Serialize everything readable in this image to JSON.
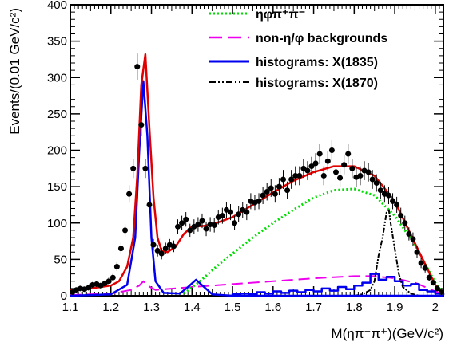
{
  "chart_data": {
    "type": "scatter",
    "xlabel": "M(ηπ⁻π⁺)(GeV/c²)",
    "ylabel": "Events/(0.01 GeV/c²)",
    "xlim": [
      1.1,
      2.02
    ],
    "ylim": [
      0,
      400
    ],
    "xticks": [
      "1.1",
      "1.2",
      "1.3",
      "1.4",
      "1.5",
      "1.6",
      "1.7",
      "1.8",
      "1.9",
      "2"
    ],
    "yticks": [
      "0",
      "50",
      "100",
      "150",
      "200",
      "250",
      "300",
      "350",
      "400"
    ],
    "legend_position": "top-right",
    "colors": {
      "data": "#000000",
      "total_fit": "#e00000",
      "eta_phi_pipi": "#00dd00",
      "non_eta_phi": "#ee00ee",
      "x1835": "#0000ee",
      "x1870": "#000000"
    },
    "legend": [
      {
        "label": "ηφπ⁺π⁻",
        "series": "eta_phi_pipi",
        "style": "dotted"
      },
      {
        "label": "non-η/φ backgrounds",
        "series": "non_eta_phi",
        "style": "dashed"
      },
      {
        "label": "histograms: X(1835)",
        "series": "x1835",
        "style": "solid"
      },
      {
        "label": "histograms: X(1870)",
        "series": "x1870",
        "style": "dashdotdot"
      }
    ],
    "data_points": {
      "x": [
        1.105,
        1.115,
        1.125,
        1.135,
        1.145,
        1.155,
        1.165,
        1.175,
        1.185,
        1.195,
        1.205,
        1.215,
        1.225,
        1.235,
        1.245,
        1.255,
        1.265,
        1.275,
        1.285,
        1.295,
        1.305,
        1.315,
        1.325,
        1.335,
        1.345,
        1.355,
        1.365,
        1.375,
        1.385,
        1.395,
        1.405,
        1.415,
        1.425,
        1.435,
        1.445,
        1.455,
        1.465,
        1.475,
        1.485,
        1.495,
        1.505,
        1.515,
        1.525,
        1.535,
        1.545,
        1.555,
        1.565,
        1.575,
        1.585,
        1.595,
        1.605,
        1.615,
        1.625,
        1.635,
        1.645,
        1.655,
        1.665,
        1.675,
        1.685,
        1.695,
        1.705,
        1.715,
        1.725,
        1.735,
        1.745,
        1.755,
        1.765,
        1.775,
        1.785,
        1.795,
        1.805,
        1.815,
        1.825,
        1.835,
        1.845,
        1.855,
        1.865,
        1.875,
        1.885,
        1.895,
        1.905,
        1.915,
        1.925,
        1.935,
        1.945,
        1.955,
        1.965,
        1.975,
        1.985,
        1.995,
        2.005,
        2.015
      ],
      "y": [
        5,
        8,
        10,
        9,
        11,
        15,
        16,
        14,
        17,
        20,
        25,
        40,
        65,
        90,
        140,
        175,
        315,
        235,
        175,
        125,
        70,
        62,
        58,
        65,
        70,
        68,
        95,
        100,
        105,
        90,
        95,
        98,
        103,
        92,
        98,
        97,
        108,
        110,
        118,
        115,
        100,
        112,
        118,
        115,
        130,
        128,
        130,
        138,
        143,
        148,
        140,
        150,
        160,
        145,
        160,
        165,
        165,
        175,
        172,
        178,
        182,
        195,
        165,
        185,
        200,
        170,
        162,
        180,
        195,
        175,
        163,
        165,
        172,
        170,
        160,
        155,
        145,
        140,
        138,
        130,
        125,
        110,
        100,
        85,
        78,
        60,
        45,
        38,
        25,
        18,
        10,
        5
      ],
      "error": [
        3,
        3,
        3,
        3,
        3,
        4,
        4,
        4,
        4,
        5,
        5,
        6,
        8,
        9,
        12,
        13,
        18,
        15,
        13,
        11,
        8,
        8,
        8,
        8,
        8,
        8,
        10,
        10,
        10,
        9,
        10,
        10,
        10,
        10,
        10,
        10,
        10,
        11,
        11,
        11,
        10,
        11,
        11,
        11,
        11,
        11,
        11,
        12,
        12,
        12,
        12,
        12,
        13,
        12,
        13,
        13,
        13,
        13,
        13,
        13,
        14,
        14,
        13,
        14,
        14,
        13,
        13,
        13,
        14,
        13,
        13,
        13,
        13,
        13,
        13,
        12,
        12,
        12,
        12,
        11,
        11,
        11,
        10,
        9,
        9,
        8,
        7,
        6,
        5,
        4,
        3,
        2
      ]
    },
    "series": [
      {
        "id": "total_fit",
        "x": [
          1.1,
          1.15,
          1.2,
          1.22,
          1.24,
          1.255,
          1.265,
          1.275,
          1.285,
          1.295,
          1.305,
          1.315,
          1.325,
          1.34,
          1.36,
          1.38,
          1.4,
          1.43,
          1.46,
          1.5,
          1.55,
          1.6,
          1.65,
          1.7,
          1.75,
          1.8,
          1.85,
          1.9,
          1.95,
          2.0,
          2.02
        ],
        "y": [
          8,
          10,
          14,
          20,
          40,
          80,
          165,
          290,
          332,
          230,
          135,
          80,
          62,
          60,
          68,
          85,
          95,
          96,
          100,
          108,
          125,
          142,
          158,
          170,
          178,
          178,
          165,
          130,
          72,
          15,
          3
        ]
      },
      {
        "id": "eta_phi_pipi",
        "x": [
          1.38,
          1.42,
          1.46,
          1.5,
          1.55,
          1.6,
          1.65,
          1.7,
          1.75,
          1.8,
          1.85,
          1.9,
          1.95,
          2.0,
          2.02
        ],
        "y": [
          3,
          20,
          40,
          58,
          80,
          100,
          118,
          135,
          145,
          147,
          138,
          110,
          70,
          18,
          3
        ]
      },
      {
        "id": "non_eta_phi",
        "x": [
          1.1,
          1.2,
          1.25,
          1.27,
          1.28,
          1.29,
          1.31,
          1.4,
          1.5,
          1.6,
          1.7,
          1.8,
          1.85,
          1.9,
          1.95,
          2.0,
          2.02
        ],
        "y": [
          1,
          3,
          8,
          14,
          20,
          14,
          8,
          12,
          16,
          20,
          24,
          27,
          27,
          24,
          18,
          6,
          2
        ]
      },
      {
        "id": "x1835",
        "x": [
          1.1,
          1.2,
          1.24,
          1.26,
          1.27,
          1.28,
          1.29,
          1.3,
          1.31,
          1.33,
          1.37,
          1.39,
          1.41,
          1.43,
          1.45,
          1.5,
          2.02
        ],
        "y": [
          0,
          2,
          15,
          80,
          200,
          295,
          220,
          80,
          20,
          4,
          3,
          12,
          22,
          12,
          2,
          0,
          0
        ]
      },
      {
        "id": "x1835_hist",
        "x": [
          1.5,
          1.52,
          1.54,
          1.56,
          1.58,
          1.6,
          1.62,
          1.64,
          1.66,
          1.68,
          1.7,
          1.72,
          1.74,
          1.76,
          1.78,
          1.8,
          1.82,
          1.84,
          1.86,
          1.88,
          1.9,
          1.92,
          1.94,
          1.96,
          1.98,
          2.0,
          2.02
        ],
        "y": [
          2,
          3,
          2,
          5,
          3,
          6,
          4,
          7,
          5,
          8,
          6,
          10,
          7,
          12,
          9,
          14,
          18,
          30,
          22,
          26,
          20,
          14,
          16,
          8,
          6,
          3,
          1
        ]
      },
      {
        "id": "x1870",
        "x": [
          1.8,
          1.82,
          1.84,
          1.85,
          1.86,
          1.87,
          1.88,
          1.885,
          1.89,
          1.9,
          1.91,
          1.92,
          1.94,
          1.96
        ],
        "y": [
          0,
          2,
          8,
          20,
          55,
          80,
          115,
          120,
          100,
          65,
          30,
          12,
          3,
          0
        ]
      }
    ]
  }
}
